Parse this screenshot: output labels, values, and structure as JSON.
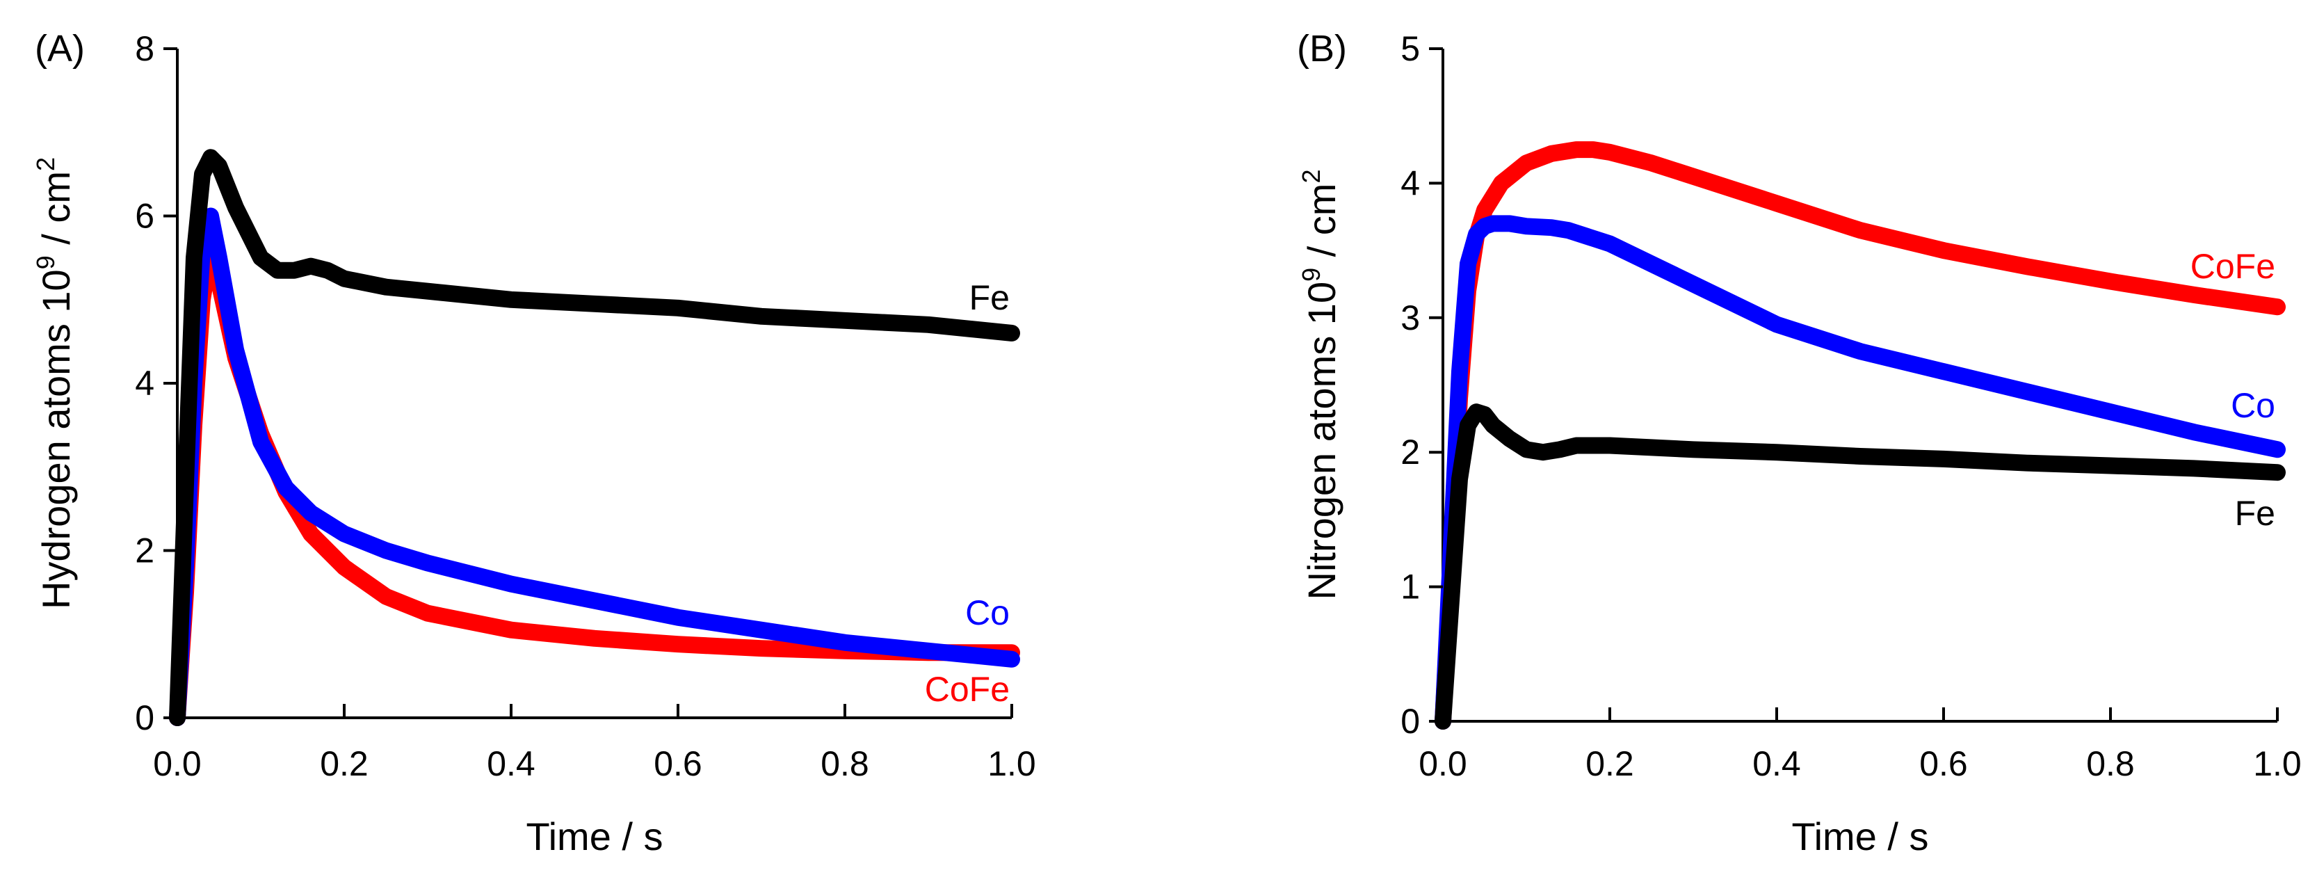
{
  "chart_data": [
    {
      "type": "line",
      "panel_label": "(A)",
      "xlabel": "Time / s",
      "ylabel": {
        "prefix": "Hydrogen atoms 10",
        "exp1": "9",
        "mid": " / cm",
        "exp2": "2"
      },
      "xlim": [
        0,
        1.0
      ],
      "ylim": [
        0,
        8
      ],
      "xticks": [
        "0.0",
        "0.2",
        "0.4",
        "0.6",
        "0.8",
        "1.0"
      ],
      "yticks": [
        "0",
        "2",
        "4",
        "6",
        "8"
      ],
      "series": [
        {
          "name": "CoFe",
          "color": "#ff0000",
          "x": [
            0,
            0.01,
            0.02,
            0.03,
            0.04,
            0.05,
            0.07,
            0.1,
            0.13,
            0.16,
            0.2,
            0.25,
            0.3,
            0.4,
            0.5,
            0.6,
            0.7,
            0.8,
            0.9,
            1.0
          ],
          "y": [
            0,
            1.5,
            3.5,
            5.0,
            5.6,
            5.2,
            4.3,
            3.4,
            2.7,
            2.2,
            1.8,
            1.45,
            1.25,
            1.05,
            0.95,
            0.88,
            0.83,
            0.8,
            0.78,
            0.78
          ]
        },
        {
          "name": "Co",
          "color": "#0000ff",
          "x": [
            0,
            0.01,
            0.02,
            0.03,
            0.04,
            0.05,
            0.07,
            0.1,
            0.13,
            0.16,
            0.2,
            0.25,
            0.3,
            0.4,
            0.5,
            0.6,
            0.7,
            0.8,
            0.9,
            1.0
          ],
          "y": [
            0,
            1.8,
            4.0,
            5.6,
            6.0,
            5.5,
            4.4,
            3.3,
            2.75,
            2.45,
            2.2,
            2.0,
            1.85,
            1.6,
            1.4,
            1.2,
            1.05,
            0.9,
            0.8,
            0.7
          ]
        },
        {
          "name": "Fe",
          "color": "#000000",
          "x": [
            0,
            0.01,
            0.02,
            0.03,
            0.04,
            0.05,
            0.07,
            0.09,
            0.1,
            0.12,
            0.14,
            0.16,
            0.18,
            0.2,
            0.25,
            0.3,
            0.4,
            0.5,
            0.6,
            0.7,
            0.8,
            0.9,
            1.0
          ],
          "y": [
            0,
            2.8,
            5.5,
            6.5,
            6.7,
            6.6,
            6.1,
            5.7,
            5.5,
            5.35,
            5.35,
            5.4,
            5.35,
            5.25,
            5.15,
            5.1,
            5.0,
            4.95,
            4.9,
            4.8,
            4.75,
            4.7,
            4.6
          ]
        }
      ],
      "annotations": [
        "Fe",
        "Co",
        "CoFe"
      ]
    },
    {
      "type": "line",
      "panel_label": "(B)",
      "xlabel": "Time / s",
      "ylabel": {
        "prefix": "Nitrogen atoms 10",
        "exp1": "9",
        "mid": " / cm",
        "exp2": "2"
      },
      "xlim": [
        0,
        1.0
      ],
      "ylim": [
        0,
        5
      ],
      "xticks": [
        "0.0",
        "0.2",
        "0.4",
        "0.6",
        "0.8",
        "1.0"
      ],
      "yticks": [
        "0",
        "1",
        "2",
        "3",
        "4",
        "5"
      ],
      "series": [
        {
          "name": "CoFe",
          "color": "#ff0000",
          "x": [
            0,
            0.01,
            0.02,
            0.03,
            0.04,
            0.05,
            0.07,
            0.1,
            0.13,
            0.16,
            0.18,
            0.2,
            0.25,
            0.3,
            0.4,
            0.5,
            0.6,
            0.7,
            0.8,
            0.9,
            1.0
          ],
          "y": [
            0,
            1.2,
            2.4,
            3.2,
            3.6,
            3.8,
            4.0,
            4.15,
            4.22,
            4.25,
            4.25,
            4.23,
            4.15,
            4.05,
            3.85,
            3.65,
            3.5,
            3.38,
            3.27,
            3.17,
            3.08
          ]
        },
        {
          "name": "Co",
          "color": "#0000ff",
          "x": [
            0,
            0.01,
            0.02,
            0.03,
            0.04,
            0.05,
            0.06,
            0.08,
            0.1,
            0.13,
            0.15,
            0.2,
            0.25,
            0.3,
            0.4,
            0.5,
            0.6,
            0.7,
            0.8,
            0.9,
            1.0
          ],
          "y": [
            0,
            1.3,
            2.6,
            3.4,
            3.62,
            3.68,
            3.7,
            3.7,
            3.68,
            3.67,
            3.65,
            3.55,
            3.4,
            3.25,
            2.95,
            2.75,
            2.6,
            2.45,
            2.3,
            2.15,
            2.02
          ]
        },
        {
          "name": "Fe",
          "color": "#000000",
          "x": [
            0,
            0.01,
            0.02,
            0.03,
            0.04,
            0.05,
            0.06,
            0.08,
            0.1,
            0.12,
            0.14,
            0.16,
            0.2,
            0.3,
            0.4,
            0.5,
            0.6,
            0.7,
            0.8,
            0.9,
            1.0
          ],
          "y": [
            0,
            0.9,
            1.8,
            2.2,
            2.3,
            2.28,
            2.2,
            2.1,
            2.02,
            2.0,
            2.02,
            2.05,
            2.05,
            2.02,
            2.0,
            1.97,
            1.95,
            1.92,
            1.9,
            1.88,
            1.85
          ]
        }
      ],
      "annotations": [
        "CoFe",
        "Co",
        "Fe"
      ]
    }
  ]
}
